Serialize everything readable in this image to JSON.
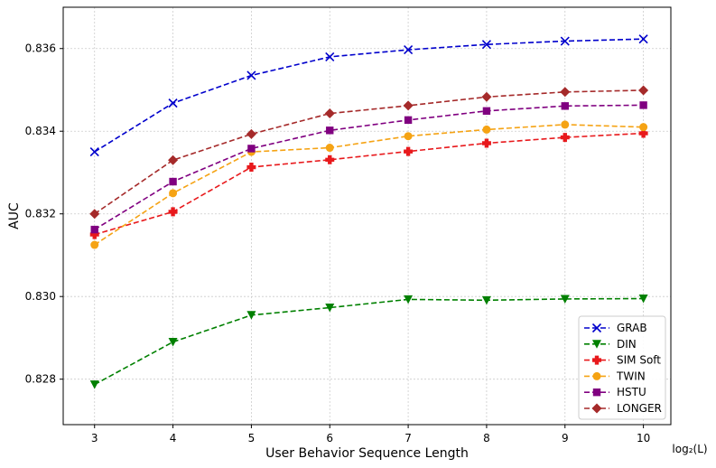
{
  "chart_data": {
    "type": "line",
    "title": "",
    "xlabel": "User Behavior Sequence Length",
    "x_unit_label": "log₂(L)",
    "ylabel": "AUC",
    "x": [
      3,
      4,
      5,
      6,
      7,
      8,
      9,
      10
    ],
    "x_ticks": [
      3,
      4,
      5,
      6,
      7,
      8,
      9,
      10
    ],
    "xlim": [
      2.6,
      10.35
    ],
    "ylim": [
      0.8269,
      0.837
    ],
    "y_ticks": [
      0.828,
      0.83,
      0.832,
      0.834,
      0.836
    ],
    "y_tick_labels": [
      "0.828",
      "0.830",
      "0.832",
      "0.834",
      "0.836"
    ],
    "grid": true,
    "legend_position": "bottom-right",
    "series": [
      {
        "name": "GRAB",
        "color": "#0000cc",
        "marker": "x",
        "values": [
          0.8335,
          0.83468,
          0.83535,
          0.8358,
          0.83597,
          0.8361,
          0.83618,
          0.83623
        ]
      },
      {
        "name": "DIN",
        "color": "#008000",
        "marker": "triangle-down",
        "values": [
          0.82787,
          0.8289,
          0.82955,
          0.82973,
          0.82993,
          0.82991,
          0.82994,
          0.82995
        ]
      },
      {
        "name": "SIM Soft",
        "color": "#e8191c",
        "marker": "plus",
        "values": [
          0.8315,
          0.83205,
          0.83313,
          0.83331,
          0.83351,
          0.83371,
          0.83385,
          0.83395
        ]
      },
      {
        "name": "TWIN",
        "color": "#f5a314",
        "marker": "circle",
        "values": [
          0.83125,
          0.8325,
          0.8335,
          0.8336,
          0.83388,
          0.83404,
          0.83416,
          0.8341
        ]
      },
      {
        "name": "HSTU",
        "color": "#800080",
        "marker": "square",
        "values": [
          0.83162,
          0.83278,
          0.83358,
          0.83402,
          0.83427,
          0.83449,
          0.83461,
          0.83463
        ]
      },
      {
        "name": "LONGER",
        "color": "#a52a2a",
        "marker": "diamond",
        "values": [
          0.832,
          0.8333,
          0.83393,
          0.83443,
          0.83462,
          0.83483,
          0.83495,
          0.83499
        ]
      }
    ]
  }
}
